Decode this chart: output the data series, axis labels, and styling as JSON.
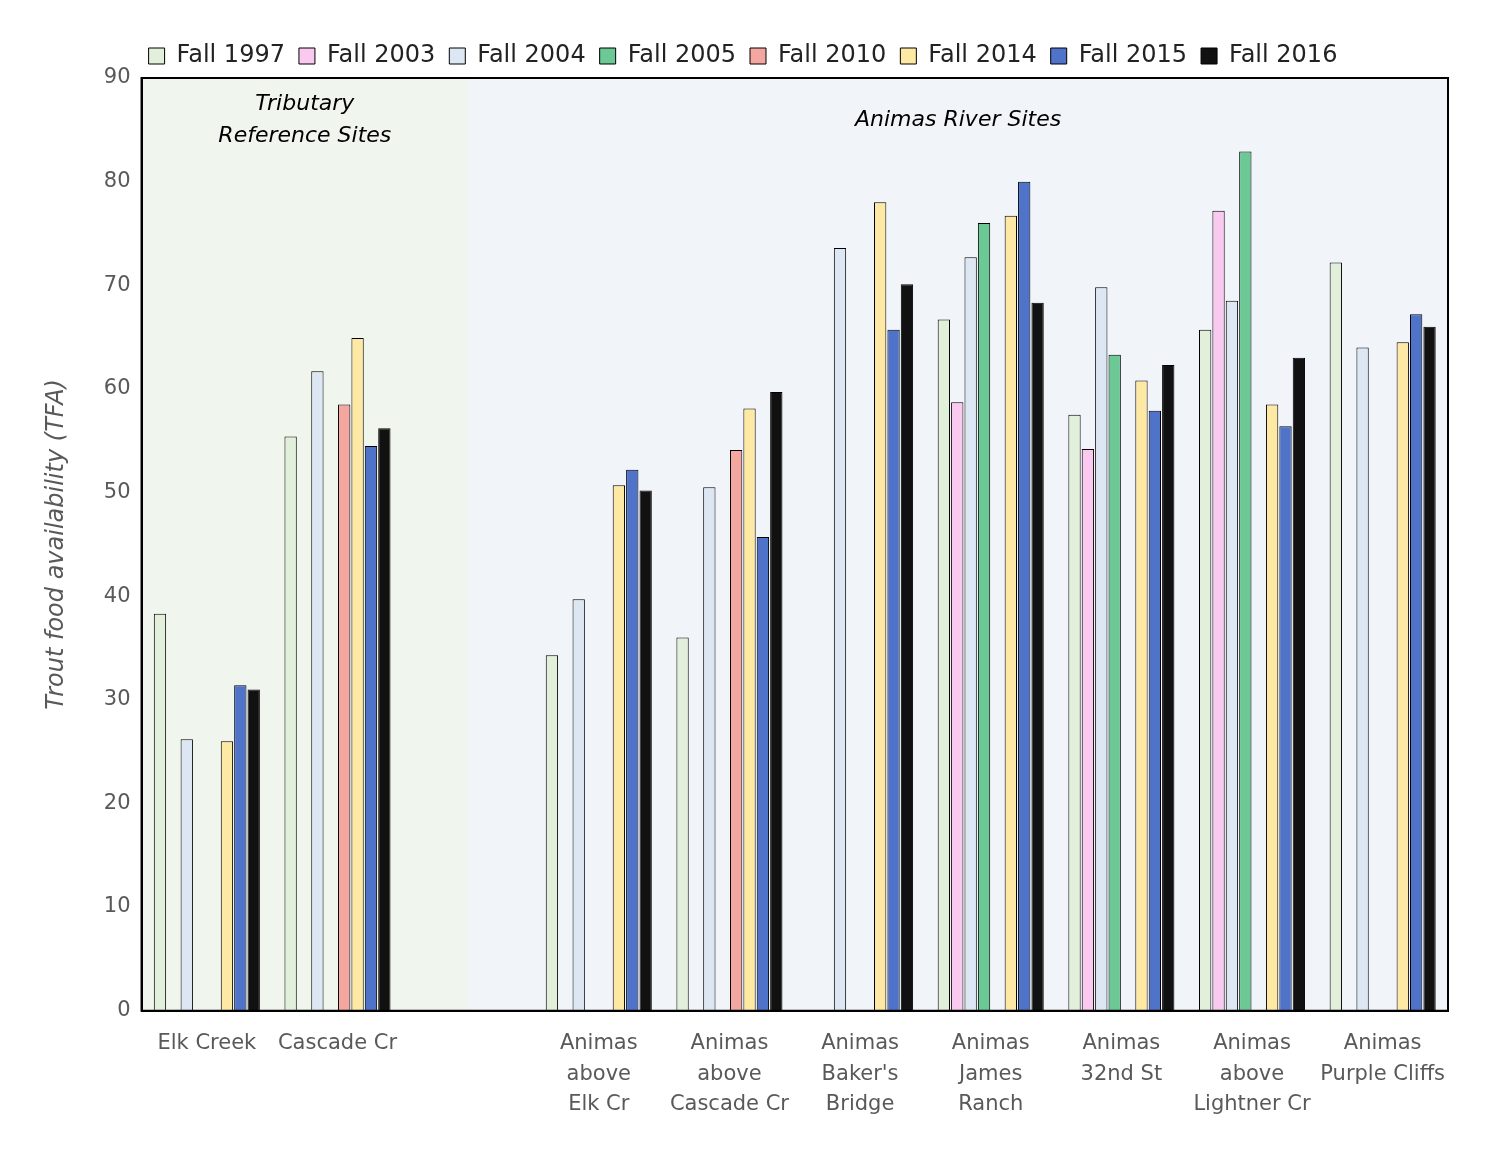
{
  "chart_data": {
    "type": "bar",
    "ylabel": "Trout food availability (TFA)",
    "categories": [
      "Elk Creek",
      "Cascade Cr",
      null,
      "Animas\nabove\nElk Cr",
      "Animas\nabove\nCascade Cr",
      "Animas\nBaker's\nBridge",
      "Animas\nJames\nRanch",
      "Animas\n32nd St",
      "Animas\nabove\nLightner Cr",
      "Animas\nPurple Cliffs"
    ],
    "series": [
      {
        "name": "Fall 1997",
        "color": "#e2efda",
        "values": [
          38.3,
          55.4,
          null,
          34.3,
          36.0,
          null,
          66.7,
          57.5,
          65.7,
          72.2
        ]
      },
      {
        "name": "Fall 2003",
        "color": "#f9c9ef",
        "values": [
          null,
          null,
          null,
          null,
          null,
          null,
          58.7,
          54.2,
          77.2,
          null
        ]
      },
      {
        "name": "Fall 2004",
        "color": "#dde7f3",
        "values": [
          26.2,
          61.7,
          null,
          39.7,
          50.5,
          73.6,
          72.7,
          69.8,
          68.5,
          64.0
        ]
      },
      {
        "name": "Fall 2005",
        "color": "#6cc894",
        "values": [
          null,
          null,
          null,
          null,
          null,
          null,
          76.0,
          63.3,
          82.9,
          null
        ]
      },
      {
        "name": "Fall 2010",
        "color": "#f4a7a0",
        "values": [
          null,
          58.5,
          null,
          null,
          54.1,
          null,
          null,
          null,
          null,
          null
        ]
      },
      {
        "name": "Fall 2014",
        "color": "#fde8a4",
        "values": [
          26.0,
          64.9,
          null,
          50.7,
          58.1,
          78.0,
          76.7,
          60.8,
          58.5,
          64.5
        ]
      },
      {
        "name": "Fall 2015",
        "color": "#4f73c9",
        "values": [
          31.4,
          54.5,
          null,
          52.2,
          45.7,
          65.7,
          80.0,
          57.9,
          56.4,
          67.2
        ]
      },
      {
        "name": "Fall 2016",
        "color": "#111111",
        "values": [
          31.0,
          56.2,
          null,
          50.2,
          59.7,
          70.1,
          68.3,
          62.3,
          63.0,
          66.0
        ]
      }
    ],
    "annotations": [
      "Tributary\nReference Sites",
      "Animas River Sites"
    ],
    "ylim": [
      0,
      90
    ],
    "yticks": [
      0,
      10,
      20,
      30,
      40,
      50,
      60,
      70,
      80,
      90
    ],
    "grid": false,
    "legend": "top"
  }
}
